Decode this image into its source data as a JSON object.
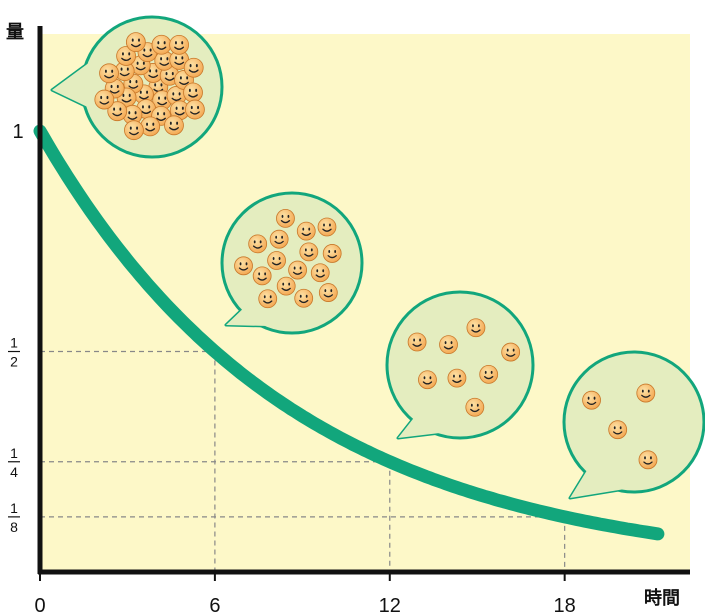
{
  "chart_data": {
    "type": "line",
    "title": "",
    "xlabel": "時間",
    "ylabel": "量",
    "x_ticks": [
      {
        "value": 0,
        "label": "0"
      },
      {
        "value": 6,
        "label": "6"
      },
      {
        "value": 12,
        "label": "12"
      },
      {
        "value": 18,
        "label": "18"
      }
    ],
    "y_ticks": [
      {
        "value": 1,
        "label": "1"
      },
      {
        "value": 0.5,
        "num": "1",
        "den": "2"
      },
      {
        "value": 0.25,
        "num": "1",
        "den": "4"
      },
      {
        "value": 0.125,
        "num": "1",
        "den": "8"
      }
    ],
    "xlim": [
      0,
      22.3
    ],
    "ylim": [
      0,
      1.22
    ],
    "curve": {
      "half_life": 6,
      "x": [
        0,
        2,
        4,
        6,
        8,
        10,
        12,
        14,
        16,
        18,
        20,
        21.2
      ],
      "y": [
        1,
        0.794,
        0.63,
        0.5,
        0.397,
        0.315,
        0.25,
        0.198,
        0.157,
        0.125,
        0.099,
        0.087
      ]
    },
    "reference_lines": [
      {
        "x": 6,
        "y": 0.5
      },
      {
        "x": 12,
        "y": 0.25
      },
      {
        "x": 18,
        "y": 0.125
      }
    ],
    "bubbles": [
      {
        "at_x": 0,
        "particle_count": 32
      },
      {
        "at_x": 6,
        "particle_count": 16
      },
      {
        "at_x": 12,
        "particle_count": 8
      },
      {
        "at_x": 18,
        "particle_count": 4
      }
    ],
    "colors": {
      "plot_background": "#fdf8c8",
      "curve": "#12a67c",
      "bubble_fill": "#e4edbf",
      "bubble_stroke": "#12a67c",
      "particle": "#f8b45c",
      "grid": "#888888",
      "axis": "#111111"
    },
    "grid": false
  }
}
